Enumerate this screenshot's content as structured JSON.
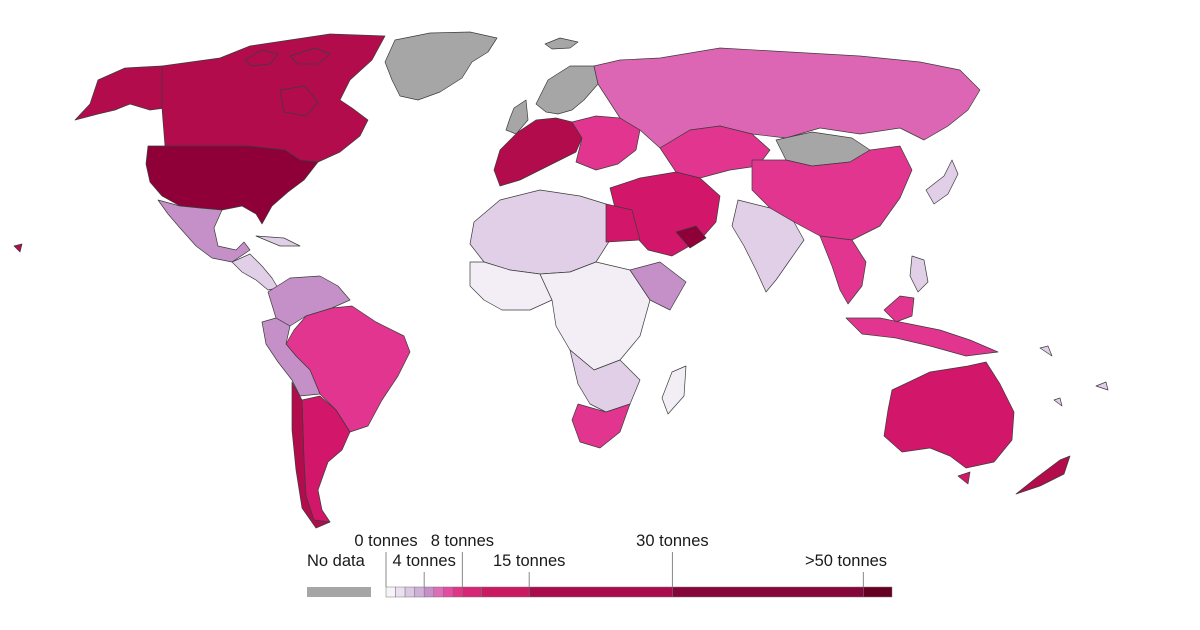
{
  "colors": {
    "no_data": "#a6a6a6",
    "c0": "#f3eef6",
    "c1": "#e0cfe6",
    "c2": "#d1b1d9",
    "c3": "#c590c8",
    "c4": "#dc66b4",
    "c5": "#e2358f",
    "c6": "#d2166a",
    "c7": "#b20c4d",
    "c8": "#8f0038",
    "c9": "#660022"
  },
  "legend": {
    "no_data_label": "No data",
    "labels": [
      "0 tonnes",
      "4 tonnes",
      "8 tonnes",
      "15 tonnes",
      "30 tonnes",
      ">50 tonnes"
    ],
    "bins": [
      {
        "value": 0,
        "color": "#f7f4f9"
      },
      {
        "value": 1,
        "color": "#ebe0ef"
      },
      {
        "value": 2,
        "color": "#dcc8e3"
      },
      {
        "value": 3,
        "color": "#cfb0d8"
      },
      {
        "value": 4,
        "color": "#c98ec8"
      },
      {
        "value": 5,
        "color": "#de6cb8"
      },
      {
        "value": 6,
        "color": "#e34aa0"
      },
      {
        "value": 7,
        "color": "#e0348a"
      },
      {
        "value": 8,
        "color": "#d62574"
      },
      {
        "value": 10,
        "color": "#c81962"
      },
      {
        "value": 15,
        "color": "#a80c4c"
      },
      {
        "value": 30,
        "color": "#86053a"
      },
      {
        "value": 50,
        "color": "#660022"
      }
    ],
    "max_value": 53
  }
}
